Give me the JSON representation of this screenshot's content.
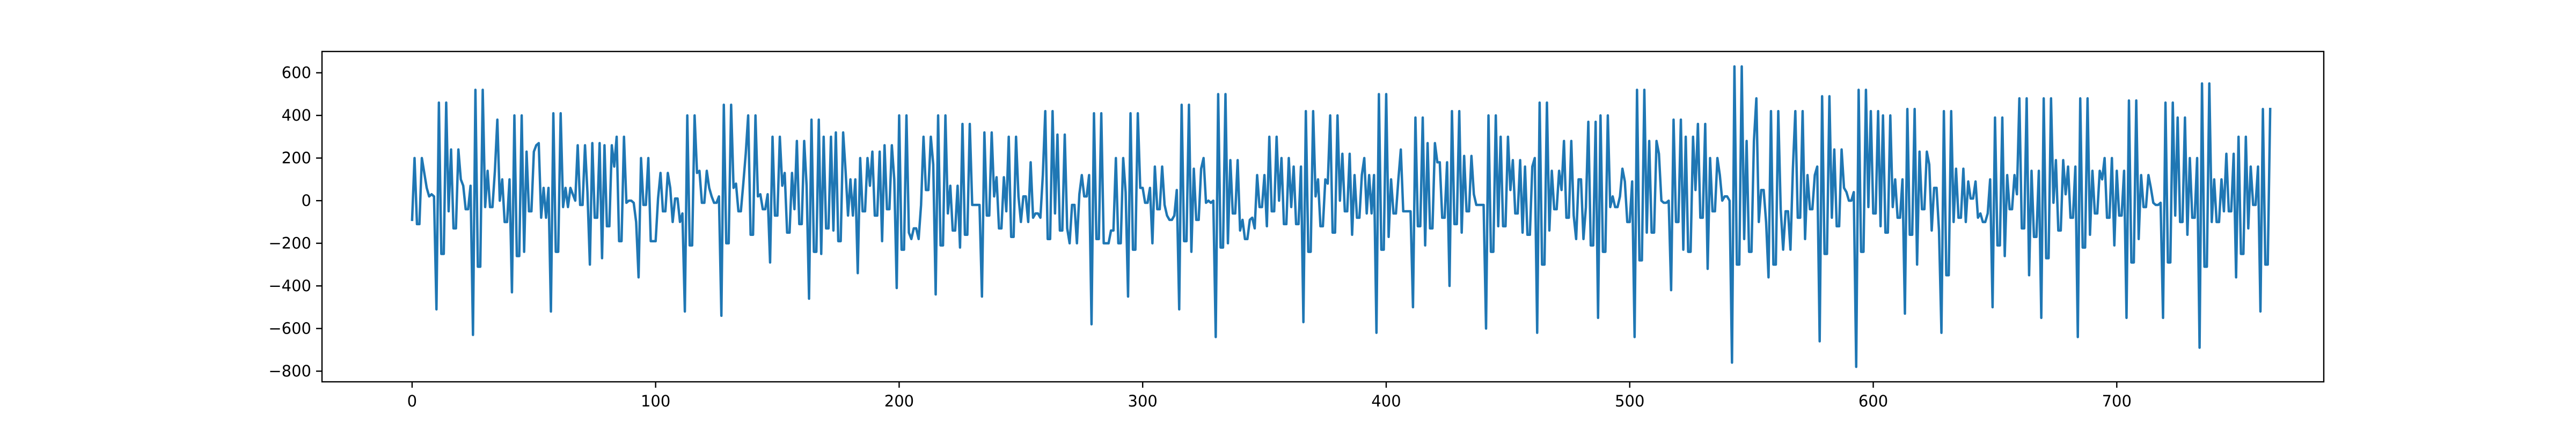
{
  "chart_data": {
    "type": "line",
    "title": "",
    "xlabel": "",
    "ylabel": "",
    "xlim": [
      -37,
      785
    ],
    "ylim": [
      -850,
      700
    ],
    "xticks": [
      0,
      100,
      200,
      300,
      400,
      500,
      600,
      700
    ],
    "yticks": [
      -800,
      -600,
      -400,
      -200,
      0,
      200,
      400,
      600
    ],
    "grid": false,
    "legend": "none",
    "series": [
      {
        "color": "#1f77b4",
        "x_start": 0,
        "x_step": 1,
        "y": [
          -90,
          200,
          -110,
          -110,
          200,
          130,
          60,
          20,
          30,
          20,
          -510,
          460,
          -250,
          -250,
          460,
          -50,
          240,
          -130,
          -130,
          240,
          100,
          70,
          -40,
          -40,
          70,
          -630,
          520,
          -310,
          -310,
          520,
          -30,
          140,
          -30,
          -30,
          140,
          380,
          0,
          100,
          -100,
          -100,
          100,
          -430,
          400,
          -260,
          -260,
          400,
          -240,
          230,
          -50,
          -50,
          230,
          260,
          270,
          -80,
          60,
          -80,
          60,
          -520,
          410,
          -240,
          -240,
          410,
          -30,
          60,
          -30,
          60,
          30,
          0,
          260,
          -20,
          -20,
          260,
          40,
          -300,
          270,
          -80,
          -80,
          270,
          -270,
          260,
          -120,
          -120,
          260,
          160,
          300,
          -190,
          -190,
          300,
          -10,
          0,
          0,
          -10,
          -100,
          -360,
          200,
          -20,
          -20,
          200,
          -190,
          -190,
          -190,
          10,
          130,
          -50,
          -50,
          130,
          60,
          -100,
          10,
          10,
          -100,
          -60,
          -520,
          400,
          -210,
          -210,
          400,
          130,
          140,
          -10,
          -10,
          140,
          60,
          20,
          -10,
          -10,
          20,
          -540,
          450,
          -200,
          -200,
          450,
          60,
          80,
          -50,
          -50,
          80,
          220,
          400,
          -160,
          -160,
          400,
          20,
          30,
          -40,
          -40,
          30,
          -290,
          300,
          -70,
          -70,
          300,
          70,
          130,
          -150,
          -150,
          130,
          -40,
          280,
          -110,
          -110,
          280,
          70,
          -460,
          380,
          -240,
          -240,
          380,
          -250,
          300,
          -130,
          -130,
          300,
          -140,
          320,
          -190,
          -190,
          320,
          140,
          -70,
          100,
          -70,
          100,
          -340,
          200,
          -50,
          -50,
          200,
          70,
          230,
          -70,
          -70,
          230,
          -190,
          260,
          -40,
          -40,
          260,
          100,
          -410,
          400,
          -230,
          -230,
          400,
          -150,
          -180,
          -130,
          -130,
          -180,
          -20,
          300,
          50,
          50,
          300,
          170,
          -440,
          400,
          -210,
          -210,
          400,
          -60,
          70,
          -140,
          -140,
          70,
          -220,
          360,
          -160,
          -160,
          360,
          -20,
          -20,
          -20,
          -20,
          -450,
          320,
          -70,
          -70,
          320,
          20,
          110,
          -130,
          -130,
          110,
          -50,
          300,
          -170,
          -170,
          300,
          20,
          -100,
          20,
          20,
          -100,
          180,
          -80,
          -60,
          -60,
          -80,
          120,
          420,
          -180,
          -180,
          420,
          -60,
          310,
          -140,
          -140,
          310,
          -130,
          -200,
          -20,
          -20,
          -200,
          30,
          120,
          20,
          20,
          120,
          -580,
          410,
          -180,
          -180,
          410,
          -200,
          -200,
          -200,
          -140,
          -140,
          200,
          -200,
          -200,
          200,
          40,
          -450,
          410,
          -230,
          -230,
          410,
          60,
          60,
          -10,
          -10,
          60,
          -200,
          160,
          -40,
          -40,
          160,
          -20,
          -70,
          -90,
          -90,
          -70,
          50,
          -510,
          450,
          -190,
          -190,
          450,
          -240,
          150,
          -90,
          -90,
          150,
          200,
          -10,
          0,
          -10,
          0,
          -640,
          500,
          -220,
          -220,
          500,
          -200,
          190,
          -60,
          -60,
          190,
          -140,
          -90,
          -180,
          -180,
          -90,
          -80,
          -130,
          120,
          -30,
          -30,
          120,
          -120,
          300,
          -50,
          -50,
          300,
          0,
          200,
          -110,
          -110,
          200,
          -30,
          160,
          -110,
          -110,
          160,
          -570,
          420,
          -240,
          -240,
          420,
          20,
          100,
          -120,
          -120,
          100,
          80,
          400,
          -150,
          -150,
          400,
          0,
          220,
          -50,
          -50,
          220,
          -160,
          120,
          -80,
          -80,
          120,
          200,
          -60,
          120,
          -60,
          120,
          -620,
          500,
          -230,
          -230,
          500,
          -170,
          100,
          -60,
          -60,
          100,
          240,
          -50,
          -50,
          -50,
          -50,
          -500,
          390,
          -120,
          -120,
          390,
          -210,
          270,
          -130,
          -130,
          270,
          180,
          180,
          -80,
          -80,
          180,
          -400,
          420,
          -110,
          -110,
          420,
          -150,
          210,
          -50,
          -50,
          210,
          30,
          -20,
          -20,
          -20,
          -20,
          -600,
          400,
          -240,
          -240,
          400,
          -120,
          300,
          -120,
          -120,
          300,
          50,
          190,
          -60,
          -60,
          190,
          -150,
          160,
          -160,
          -160,
          160,
          200,
          -620,
          460,
          -300,
          -300,
          460,
          -140,
          140,
          -40,
          -40,
          140,
          50,
          280,
          -80,
          -80,
          280,
          -70,
          -180,
          100,
          100,
          -180,
          -30,
          370,
          -210,
          -210,
          370,
          -550,
          400,
          -240,
          -240,
          400,
          -30,
          20,
          -30,
          -30,
          20,
          150,
          90,
          -100,
          -100,
          90,
          -640,
          520,
          -280,
          -280,
          520,
          -150,
          280,
          -150,
          -150,
          280,
          220,
          0,
          -10,
          -10,
          0,
          -420,
          380,
          -100,
          -100,
          380,
          -230,
          300,
          -240,
          -240,
          300,
          50,
          360,
          -80,
          -80,
          360,
          -320,
          200,
          -50,
          -50,
          200,
          120,
          0,
          20,
          20,
          0,
          -760,
          630,
          -300,
          -300,
          630,
          -180,
          280,
          -240,
          -240,
          280,
          480,
          -100,
          50,
          50,
          -100,
          -360,
          420,
          -300,
          -300,
          420,
          -40,
          -230,
          -50,
          -50,
          -230,
          150,
          420,
          -80,
          -80,
          420,
          -180,
          120,
          -40,
          -40,
          120,
          160,
          -660,
          490,
          -250,
          -250,
          490,
          -80,
          240,
          -120,
          -120,
          240,
          60,
          40,
          0,
          0,
          40,
          -780,
          520,
          -240,
          -240,
          520,
          -30,
          420,
          -60,
          -60,
          420,
          -120,
          400,
          -150,
          -150,
          400,
          -30,
          100,
          -80,
          -80,
          100,
          -530,
          430,
          -160,
          -160,
          430,
          -300,
          230,
          -40,
          -40,
          230,
          170,
          -140,
          60,
          60,
          -140,
          -620,
          420,
          -350,
          -350,
          420,
          -100,
          150,
          -80,
          -80,
          150,
          -100,
          90,
          10,
          10,
          90,
          -80,
          -60,
          -100,
          -100,
          -60,
          100,
          -500,
          390,
          -210,
          -210,
          390,
          -260,
          120,
          -40,
          -40,
          120,
          30,
          480,
          -130,
          -130,
          480,
          -350,
          140,
          -170,
          -170,
          140,
          -550,
          480,
          -270,
          -270,
          480,
          -10,
          190,
          -140,
          -140,
          190,
          30,
          160,
          -80,
          -80,
          160,
          -640,
          480,
          -220,
          -220,
          480,
          -160,
          140,
          -60,
          -60,
          140,
          100,
          200,
          -80,
          -80,
          200,
          -210,
          140,
          -70,
          -70,
          140,
          -550,
          470,
          -290,
          -290,
          470,
          -180,
          120,
          -30,
          -30,
          120,
          60,
          -10,
          -20,
          -20,
          -10,
          -550,
          460,
          -290,
          -290,
          460,
          -70,
          390,
          -100,
          -100,
          390,
          -160,
          200,
          -80,
          -80,
          200,
          -690,
          550,
          -310,
          -310,
          550,
          -100,
          100,
          -100,
          -100,
          100,
          -50,
          220,
          -50,
          -50,
          220,
          -360,
          300,
          -250,
          -250,
          300,
          -130,
          160,
          -20,
          -20,
          160,
          -520,
          430,
          -300,
          -300,
          430
        ]
      }
    ]
  }
}
